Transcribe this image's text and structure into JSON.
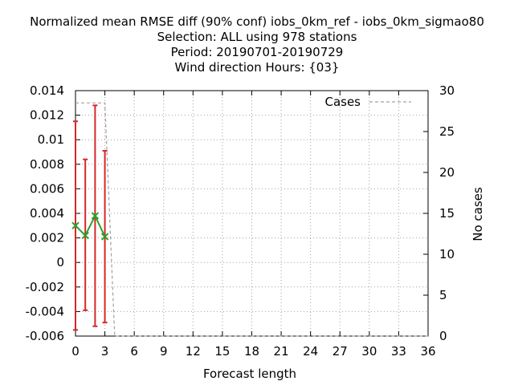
{
  "chart_data": {
    "type": "line",
    "title_lines": [
      "Normalized mean RMSE diff (90% conf) iobs_0km_ref - iobs_0km_sigmao80",
      "Selection: ALL using   978 stations",
      "Period: 20190701-20190729",
      "Wind direction   Hours: {03}"
    ],
    "xlabel": "Forecast length",
    "ylabel": "",
    "y2label": "No cases",
    "xlim": [
      0,
      36
    ],
    "ylim": [
      -0.006,
      0.014
    ],
    "y2lim": [
      0,
      30
    ],
    "x_ticks": [
      0,
      3,
      6,
      9,
      12,
      15,
      18,
      21,
      24,
      27,
      30,
      33,
      36
    ],
    "y_ticks": [
      -0.006,
      -0.004,
      -0.002,
      0,
      0.002,
      0.004,
      0.006,
      0.008,
      0.01,
      0.012,
      0.014
    ],
    "y_tick_labels": [
      "-0.006",
      "-0.004",
      "-0.002",
      "0",
      "0.002",
      "0.004",
      "0.006",
      "0.008",
      "0.01",
      "0.012",
      "0.014"
    ],
    "y2_ticks": [
      0,
      5,
      10,
      15,
      20,
      25,
      30
    ],
    "grid": true,
    "legend_placement": "top-right",
    "series": [
      {
        "kind": "diff",
        "color": "#2ca02c",
        "x": [
          0,
          1,
          2,
          3
        ],
        "y": [
          0.003,
          0.0022,
          0.0038,
          0.0021
        ],
        "err_low": [
          -0.0055,
          -0.0039,
          -0.0052,
          -0.0049
        ],
        "err_high": [
          0.0115,
          0.0084,
          0.0128,
          0.0091
        ],
        "err_color": "#d62728"
      },
      {
        "kind": "cases",
        "name": "Cases",
        "color": "#a0a0a0",
        "axis": "y2",
        "x": [
          0,
          3,
          4,
          36
        ],
        "y": [
          28.5,
          28.5,
          0,
          0
        ]
      }
    ]
  }
}
